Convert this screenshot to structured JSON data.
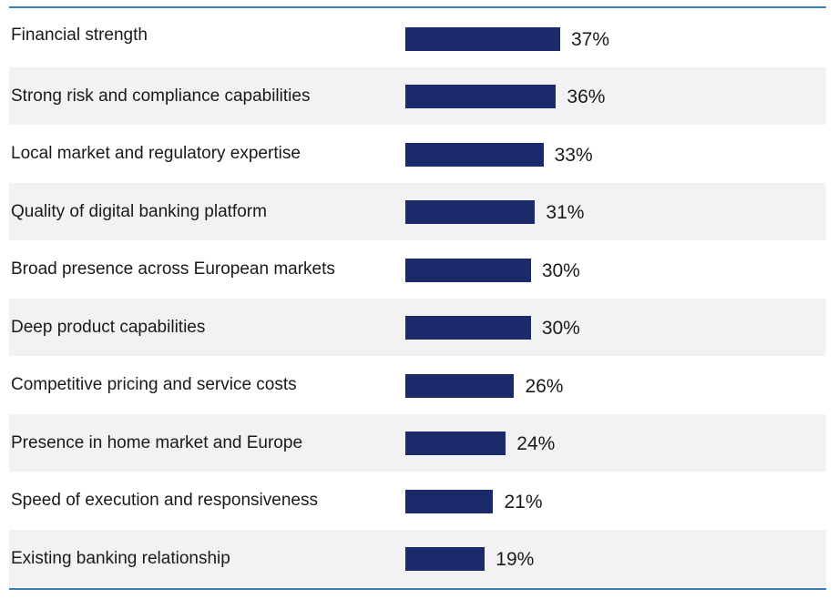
{
  "colors": {
    "bar": "#1b2a6b",
    "stripe": "#f2f2f2",
    "rule": "#3d7ab8"
  },
  "chart_data": {
    "type": "bar",
    "orientation": "horizontal",
    "categories": [
      "Financial strength",
      "Strong risk and compliance capabilities",
      "Local market and regulatory expertise",
      "Quality of digital banking platform",
      "Broad presence across European markets",
      "Deep product capabilities",
      "Competitive pricing and service costs",
      "Presence in home market and Europe",
      "Speed of execution and responsiveness",
      "Existing banking relationship"
    ],
    "values": [
      37,
      36,
      33,
      31,
      30,
      30,
      26,
      24,
      21,
      19
    ],
    "value_labels": [
      "37%",
      "36%",
      "33%",
      "31%",
      "30%",
      "30%",
      "26%",
      "24%",
      "21%",
      "19%"
    ],
    "unit": "%",
    "title": "",
    "xlabel": "",
    "ylabel": "",
    "xlim": [
      0,
      37
    ],
    "grid": false,
    "legend": "none",
    "striped_rows": true
  }
}
